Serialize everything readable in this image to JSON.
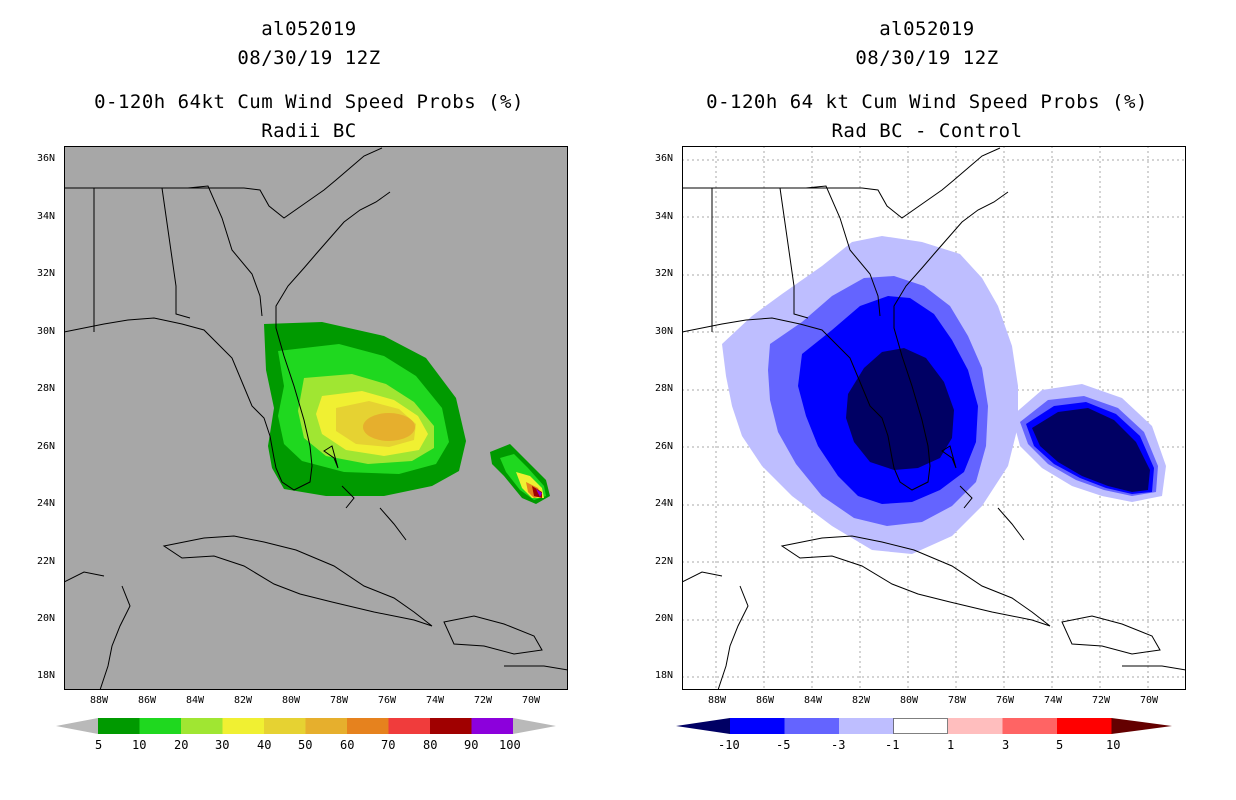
{
  "lat_labels": [
    "36N",
    "34N",
    "32N",
    "30N",
    "28N",
    "26N",
    "24N",
    "22N",
    "20N",
    "18N"
  ],
  "lon_labels": [
    "88W",
    "86W",
    "84W",
    "82W",
    "80W",
    "78W",
    "76W",
    "74W",
    "72W",
    "70W"
  ],
  "left": {
    "storm_id": "al052019",
    "date": "08/30/19 12Z",
    "title": "0-120h 64kt Cum Wind Speed Probs (%)",
    "subtitle": "Radii BC",
    "bg_color": "#a7a7a7",
    "colorbar": {
      "colors": [
        "#009a00",
        "#1fd81f",
        "#a0e632",
        "#f0f032",
        "#e6d232",
        "#e6af2d",
        "#e6821e",
        "#f03c3c",
        "#a00000",
        "#8c00dc"
      ],
      "under": "#b9b9b9",
      "over": "#b9b9b9",
      "labels": [
        "5",
        "10",
        "20",
        "30",
        "40",
        "50",
        "60",
        "70",
        "80",
        "90",
        "100"
      ]
    }
  },
  "right": {
    "storm_id": "al052019",
    "date": "08/30/19 12Z",
    "title": "0-120h 64 kt Cum Wind Speed Probs (%)",
    "subtitle": "Rad BC - Control",
    "bg_color": "#ffffff",
    "colorbar": {
      "colors": [
        "#0000ff",
        "#6464ff",
        "#bebeff",
        "#ffffff",
        "#ffbebe",
        "#ff6464",
        "#ff0000"
      ],
      "under": "#000064",
      "over": "#640000",
      "labels": [
        "-10",
        "-5",
        "-3",
        "-1",
        "1",
        "3",
        "5",
        "10"
      ]
    }
  }
}
